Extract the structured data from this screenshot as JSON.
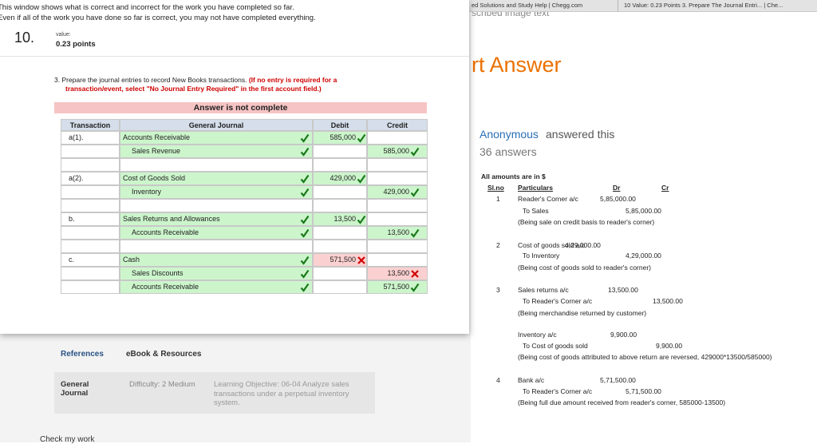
{
  "notice": {
    "line1": "This window shows what is correct and incorrect for the work you have completed so far.",
    "line2": "Even if all of the work you have done so far is correct, you may not have completed everything."
  },
  "question": {
    "number": "10.",
    "value_label": "value:",
    "points": "0.23 points",
    "prompt": "3. Prepare the journal entries to record New Books transactions.",
    "instruction": "(If no entry is required for a transaction/event, select \"No Journal Entry Required\" in the first account field.)",
    "status": "Answer is not complete"
  },
  "table": {
    "headers": [
      "Transaction",
      "General Journal",
      "Debit",
      "Credit"
    ],
    "entries": [
      {
        "transaction": "a(1).",
        "lines": [
          {
            "account": "Accounts Receivable",
            "debit": "585,000",
            "correct": true
          },
          {
            "account": "Sales Revenue",
            "credit": "585,000",
            "correct": true
          }
        ]
      },
      {
        "transaction": "a(2).",
        "lines": [
          {
            "account": "Cost of Goods Sold",
            "debit": "429,000",
            "correct": true
          },
          {
            "account": "Inventory",
            "credit": "429,000",
            "correct": true
          }
        ]
      },
      {
        "transaction": "b.",
        "lines": [
          {
            "account": "Sales Returns and Allowances",
            "debit": "13,500",
            "correct": true
          },
          {
            "account": "Accounts Receivable",
            "credit": "13,500",
            "correct": true
          }
        ]
      },
      {
        "transaction": "c.",
        "lines": [
          {
            "account": "Cash",
            "debit": "571,500",
            "correct": false
          },
          {
            "account": "Sales Discounts",
            "credit": "13,500",
            "correct": false
          },
          {
            "account": "Accounts Receivable",
            "credit": "571,500",
            "correct": true
          }
        ]
      }
    ]
  },
  "references": {
    "tabs": [
      "References",
      "eBook & Resources"
    ],
    "topic": "General Journal",
    "difficulty": "Difficulty: 2 Medium",
    "objective": "Learning Objective: 06-04 Analyze sales transactions under a perpetual inventory system.",
    "check": "Check my work"
  },
  "browser": {
    "tabs": [
      "ed Solutions and Study Help | Chegg.com",
      "10 Value: 0.23 Points 3. Prepare The Journal Entri... | Che..."
    ],
    "caption": "scribed image text"
  },
  "answer": {
    "heading": "rt Answer",
    "author": "Anonymous",
    "answered": "answered this",
    "count": "36 answers",
    "note": "All amounts are in $",
    "headers": [
      "Sl.no",
      "Particulars",
      "Dr",
      "Cr"
    ],
    "entries": [
      {
        "no": "1",
        "lines": [
          {
            "text": "Reader's Corner a/c",
            "dr": "5,85,000.00"
          },
          {
            "text": "To Sales",
            "cr": "5,85,000.00"
          },
          {
            "text": "(Being sale on credit basis to reader's corner)"
          }
        ]
      },
      {
        "no": "2",
        "lines": [
          {
            "text": "Cost of goods sold a/c",
            "dr": "4,29,000.00"
          },
          {
            "text": "To Inventory",
            "cr": "4,29,000.00"
          },
          {
            "text": "(Being cost of goods sold to reader's corner)"
          }
        ]
      },
      {
        "no": "3",
        "lines": [
          {
            "text": "Sales returns a/c",
            "dr": "13,500.00"
          },
          {
            "text": "To Reader's Corner a/c",
            "cr": "13,500.00"
          },
          {
            "text": "(Being merchandise returned by customer)"
          },
          {
            "text": "Inventory a/c",
            "dr": "9,900.00"
          },
          {
            "text": "To Cost of goods sold",
            "cr": "9,900.00"
          },
          {
            "text": "(Being cost of goods attributed to above return are reversed, 429000*13500/585000)"
          }
        ]
      },
      {
        "no": "4",
        "lines": [
          {
            "text": "Bank a/c",
            "dr": "5,71,500.00"
          },
          {
            "text": "To Reader's Corner a/c",
            "cr": "5,71,500.00"
          },
          {
            "text": "(Being full due amount received from reader's corner, 585000-13500)"
          }
        ]
      }
    ]
  }
}
